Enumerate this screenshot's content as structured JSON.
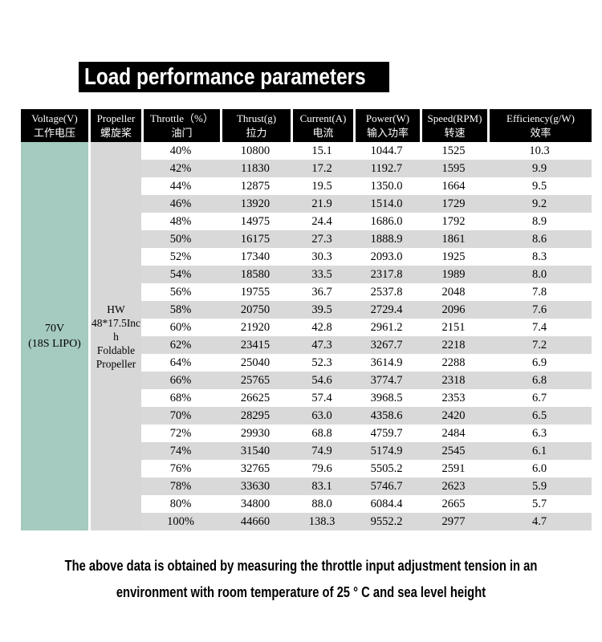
{
  "title": "Load performance parameters",
  "table": {
    "headers": [
      {
        "en": "Voltage(V)",
        "zh": "工作电压"
      },
      {
        "en": "Propeller",
        "zh": "螺旋桨"
      },
      {
        "en": "Throttle（%）",
        "zh": "油门"
      },
      {
        "en": "Thrust(g)",
        "zh": "拉力"
      },
      {
        "en": "Current(A)",
        "zh": "电流"
      },
      {
        "en": "Power(W)",
        "zh": "输入功率"
      },
      {
        "en": "Speed(RPM)",
        "zh": "转速"
      },
      {
        "en": "Efficiency(g/W)",
        "zh": "效率"
      }
    ],
    "voltage_cell": "70V\n(18S LIPO)",
    "propeller_cell": "HW\n48*17.5Inc\nh\nFoldable\nPropeller",
    "rows": [
      [
        "40%",
        "10800",
        "15.1",
        "1044.7",
        "1525",
        "10.3"
      ],
      [
        "42%",
        "11830",
        "17.2",
        "1192.7",
        "1595",
        "9.9"
      ],
      [
        "44%",
        "12875",
        "19.5",
        "1350.0",
        "1664",
        "9.5"
      ],
      [
        "46%",
        "13920",
        "21.9",
        "1514.0",
        "1729",
        "9.2"
      ],
      [
        "48%",
        "14975",
        "24.4",
        "1686.0",
        "1792",
        "8.9"
      ],
      [
        "50%",
        "16175",
        "27.3",
        "1888.9",
        "1861",
        "8.6"
      ],
      [
        "52%",
        "17340",
        "30.3",
        "2093.0",
        "1925",
        "8.3"
      ],
      [
        "54%",
        "18580",
        "33.5",
        "2317.8",
        "1989",
        "8.0"
      ],
      [
        "56%",
        "19755",
        "36.7",
        "2537.8",
        "2048",
        "7.8"
      ],
      [
        "58%",
        "20750",
        "39.5",
        "2729.4",
        "2096",
        "7.6"
      ],
      [
        "60%",
        "21920",
        "42.8",
        "2961.2",
        "2151",
        "7.4"
      ],
      [
        "62%",
        "23415",
        "47.3",
        "3267.7",
        "2218",
        "7.2"
      ],
      [
        "64%",
        "25040",
        "52.3",
        "3614.9",
        "2288",
        "6.9"
      ],
      [
        "66%",
        "25765",
        "54.6",
        "3774.7",
        "2318",
        "6.8"
      ],
      [
        "68%",
        "26625",
        "57.4",
        "3968.5",
        "2353",
        "6.7"
      ],
      [
        "70%",
        "28295",
        "63.0",
        "4358.6",
        "2420",
        "6.5"
      ],
      [
        "72%",
        "29930",
        "68.8",
        "4759.7",
        "2484",
        "6.3"
      ],
      [
        "74%",
        "31540",
        "74.9",
        "5174.9",
        "2545",
        "6.1"
      ],
      [
        "76%",
        "32765",
        "79.6",
        "5505.2",
        "2591",
        "6.0"
      ],
      [
        "78%",
        "33630",
        "83.1",
        "5746.7",
        "2623",
        "5.9"
      ],
      [
        "80%",
        "34800",
        "88.0",
        "6084.4",
        "2665",
        "5.7"
      ],
      [
        "100%",
        "44660",
        "138.3",
        "9552.2",
        "2977",
        "4.7"
      ]
    ]
  },
  "footer": {
    "line1": "The above data is obtained by measuring the throttle input adjustment tension in an",
    "line2": "environment with room temperature of 25 ° C and sea level height"
  },
  "colors": {
    "header_bg": "#000000",
    "header_text": "#ffffff",
    "voltage_cell_bg": "#a5cac0",
    "propeller_cell_bg": "#d7d7d7",
    "stripe_gray": "#d9d9d9",
    "row_white": "#ffffff",
    "title_bg": "#000000",
    "title_text": "#ffffff"
  }
}
